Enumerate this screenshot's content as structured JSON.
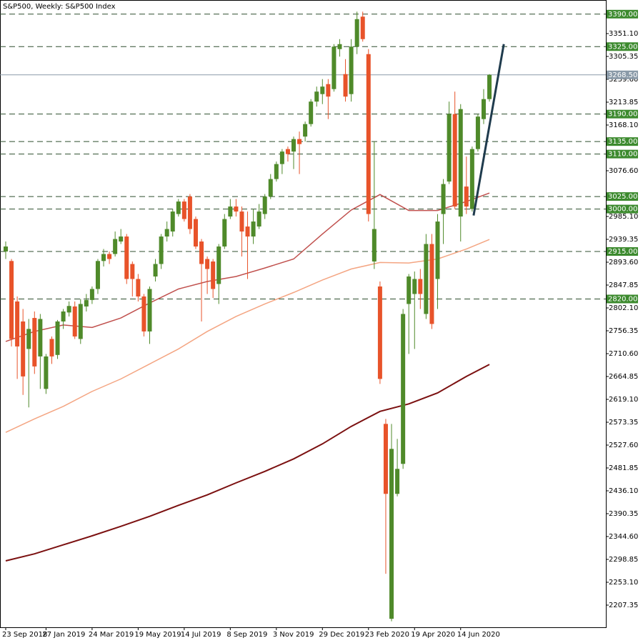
{
  "chart_data": {
    "type": "candlestick",
    "title": "S&P500, Weekly: S&P500 Index",
    "categories": [
      "23 Sep 2018",
      null,
      null,
      null,
      null,
      null,
      null,
      "27 Jan 2019",
      null,
      null,
      null,
      null,
      null,
      null,
      null,
      "24 Mar 2019",
      null,
      null,
      null,
      null,
      null,
      null,
      null,
      "19 May 2019",
      null,
      null,
      null,
      null,
      null,
      null,
      null,
      "14 Jul 2019",
      null,
      null,
      null,
      null,
      null,
      null,
      null,
      "8 Sep 2019",
      null,
      null,
      null,
      null,
      null,
      null,
      null,
      "3 Nov 2019",
      null,
      null,
      null,
      null,
      null,
      null,
      null,
      "29 Dec 2019",
      null,
      null,
      null,
      null,
      null,
      null,
      null,
      "23 Feb 2020",
      null,
      null,
      null,
      null,
      null,
      null,
      null,
      "19 Apr 2020",
      null,
      null,
      null,
      null,
      null,
      null,
      null,
      "14 Jun 2020",
      null,
      null,
      null,
      null,
      null
    ],
    "ohlc": {
      "open": [
        2915,
        2896,
        2815,
        2775,
        2720,
        2782,
        2705,
        2640,
        2740,
        2708,
        2775,
        2793,
        2805,
        2740,
        2805,
        2818,
        2840,
        2896,
        2910,
        2910,
        2935,
        2945,
        2890,
        2860,
        2825,
        2755,
        2865,
        2890,
        2945,
        2955,
        2990,
        3015,
        3025,
        2980,
        2935,
        2900,
        2895,
        2850,
        2925,
        2985,
        3005,
        2995,
        2965,
        2945,
        2965,
        2990,
        3025,
        3060,
        3090,
        3120,
        3115,
        3140,
        3145,
        3170,
        3215,
        3230,
        3250,
        3240,
        3320,
        3270,
        3230,
        3325,
        3385,
        3310,
        2895,
        2845,
        2570,
        2180,
        2430,
        2490,
        2810,
        2830,
        2860,
        2790,
        2930,
        2860,
        2990,
        3055,
        3190,
        2985,
        3045,
        3000,
        3120,
        3180,
        3220
      ],
      "high": [
        2935,
        2900,
        2825,
        2800,
        2780,
        2795,
        2790,
        2710,
        2745,
        2778,
        2800,
        2815,
        2815,
        2820,
        2830,
        2845,
        2900,
        2920,
        2915,
        2955,
        2960,
        2950,
        2895,
        2870,
        2830,
        2845,
        2900,
        2950,
        2975,
        3000,
        3020,
        3020,
        3030,
        2985,
        2940,
        2905,
        2900,
        2930,
        2990,
        3020,
        3020,
        3005,
        2995,
        3000,
        3010,
        3030,
        3070,
        3095,
        3120,
        3125,
        3145,
        3155,
        3175,
        3220,
        3245,
        3260,
        3260,
        3330,
        3340,
        3300,
        3340,
        3395,
        3395,
        3320,
        3135,
        2855,
        2580,
        2570,
        2540,
        2800,
        2870,
        2875,
        2880,
        2950,
        2950,
        2990,
        3060,
        3215,
        3235,
        3210,
        3105,
        3125,
        3190,
        3240,
        3270
      ],
      "low": [
        2900,
        2725,
        2660,
        2628,
        2603,
        2670,
        2640,
        2630,
        2690,
        2700,
        2760,
        2785,
        2740,
        2730,
        2795,
        2810,
        2830,
        2885,
        2890,
        2905,
        2930,
        2850,
        2825,
        2815,
        2745,
        2730,
        2855,
        2880,
        2935,
        2945,
        2985,
        2975,
        2950,
        2920,
        2775,
        2830,
        2822,
        2810,
        2920,
        2980,
        2985,
        2905,
        2860,
        2930,
        2960,
        2980,
        3020,
        3055,
        3070,
        3095,
        3080,
        3070,
        3135,
        3165,
        3205,
        3210,
        3180,
        3235,
        3305,
        3215,
        3215,
        3310,
        3335,
        2975,
        2880,
        2650,
        2270,
        2175,
        2425,
        2480,
        2710,
        2720,
        2800,
        2780,
        2760,
        2800,
        2930,
        3050,
        3000,
        2935,
        2990,
        2995,
        3115,
        3170,
        3215
      ],
      "close": [
        2925,
        2740,
        2725,
        2665,
        2760,
        2685,
        2780,
        2705,
        2705,
        2775,
        2795,
        2806,
        2745,
        2810,
        2818,
        2840,
        2896,
        2910,
        2900,
        2940,
        2945,
        2860,
        2860,
        2825,
        2755,
        2840,
        2890,
        2945,
        2960,
        2995,
        3015,
        2980,
        2960,
        2925,
        2890,
        2880,
        2840,
        2925,
        2980,
        3005,
        2995,
        2955,
        2945,
        2975,
        2995,
        3025,
        3060,
        3090,
        3115,
        3110,
        3140,
        3130,
        3170,
        3215,
        3235,
        3245,
        3225,
        3325,
        3330,
        3225,
        3325,
        3380,
        3340,
        2990,
        2960,
        2660,
        2430,
        2520,
        2480,
        2790,
        2865,
        2860,
        2830,
        2930,
        2770,
        2975,
        3050,
        3190,
        3005,
        3200,
        3005,
        3120,
        3185,
        3220,
        3268.5
      ]
    },
    "up_color": "#4f8a2a",
    "down_color": "#e8532a",
    "moving_averages": [
      {
        "color": "#c0504d",
        "x": [
          0,
          5,
          10,
          15,
          20,
          25,
          30,
          35,
          40,
          45,
          50,
          55,
          60,
          65,
          70,
          75,
          80,
          84
        ],
        "values": [
          2735,
          2755,
          2768,
          2763,
          2782,
          2812,
          2840,
          2855,
          2865,
          2882,
          2900,
          2950,
          2998,
          3029,
          2997,
          2997,
          3015,
          3032
        ]
      },
      {
        "color": "#f4a582",
        "x": [
          0,
          5,
          10,
          15,
          20,
          25,
          30,
          35,
          40,
          45,
          50,
          55,
          60,
          65,
          70,
          75,
          80,
          84
        ],
        "values": [
          2553,
          2580,
          2605,
          2635,
          2660,
          2690,
          2720,
          2755,
          2785,
          2810,
          2833,
          2858,
          2880,
          2893,
          2892,
          2900,
          2920,
          2939
        ]
      },
      {
        "color": "#7b1010",
        "x": [
          0,
          5,
          10,
          15,
          20,
          25,
          30,
          35,
          40,
          45,
          50,
          55,
          60,
          65,
          70,
          75,
          80,
          84
        ],
        "values": [
          2296,
          2310,
          2328,
          2346,
          2365,
          2385,
          2407,
          2428,
          2452,
          2475,
          2500,
          2530,
          2565,
          2595,
          2610,
          2632,
          2665,
          2689
        ]
      }
    ],
    "trendline": {
      "color": "#1f3b4d",
      "x": [
        81.25,
        86.5
      ],
      "values": [
        2987,
        3330
      ]
    },
    "levels": [
      {
        "value": 3390,
        "label": "3390.00"
      },
      {
        "value": 3325,
        "label": "3325.00"
      },
      {
        "value": 3190,
        "label": "3190.00"
      },
      {
        "value": 3135,
        "label": "3135.00"
      },
      {
        "value": 3110,
        "label": "3110.00"
      },
      {
        "value": 3025,
        "label": "3025.00"
      },
      {
        "value": 3000,
        "label": "3000.00"
      },
      {
        "value": 2915,
        "label": "2915.00"
      },
      {
        "value": 2820,
        "label": "2820.00"
      }
    ],
    "level_color": "#3c8a2e",
    "current_price": {
      "value": 3268.5,
      "label": "3268.50"
    },
    "ylim": [
      2163.0,
      3418.3
    ],
    "yticks": [
      {
        "value": 3351.1,
        "label": "3351.10"
      },
      {
        "value": 3305.35,
        "label": "3305.35"
      },
      {
        "value": 3259.6,
        "label": "3259.60"
      },
      {
        "value": 3213.85,
        "label": "3213.85"
      },
      {
        "value": 3168.1,
        "label": "3168.10"
      },
      {
        "value": 3076.6,
        "label": "3076.60"
      },
      {
        "value": 2985.1,
        "label": "2985.10"
      },
      {
        "value": 2939.35,
        "label": "2939.35"
      },
      {
        "value": 2893.6,
        "label": "2893.60"
      },
      {
        "value": 2847.85,
        "label": "2847.85"
      },
      {
        "value": 2802.1,
        "label": "2802.10"
      },
      {
        "value": 2756.35,
        "label": "2756.35"
      },
      {
        "value": 2710.6,
        "label": "2710.60"
      },
      {
        "value": 2664.85,
        "label": "2664.85"
      },
      {
        "value": 2619.1,
        "label": "2619.10"
      },
      {
        "value": 2573.35,
        "label": "2573.35"
      },
      {
        "value": 2527.6,
        "label": "2527.60"
      },
      {
        "value": 2481.85,
        "label": "2481.85"
      },
      {
        "value": 2436.1,
        "label": "2436.10"
      },
      {
        "value": 2390.35,
        "label": "2390.35"
      },
      {
        "value": 2344.6,
        "label": "2344.60"
      },
      {
        "value": 2298.85,
        "label": "2298.85"
      },
      {
        "value": 2253.1,
        "label": "2253.10"
      },
      {
        "value": 2207.35,
        "label": "2207.35"
      }
    ]
  }
}
